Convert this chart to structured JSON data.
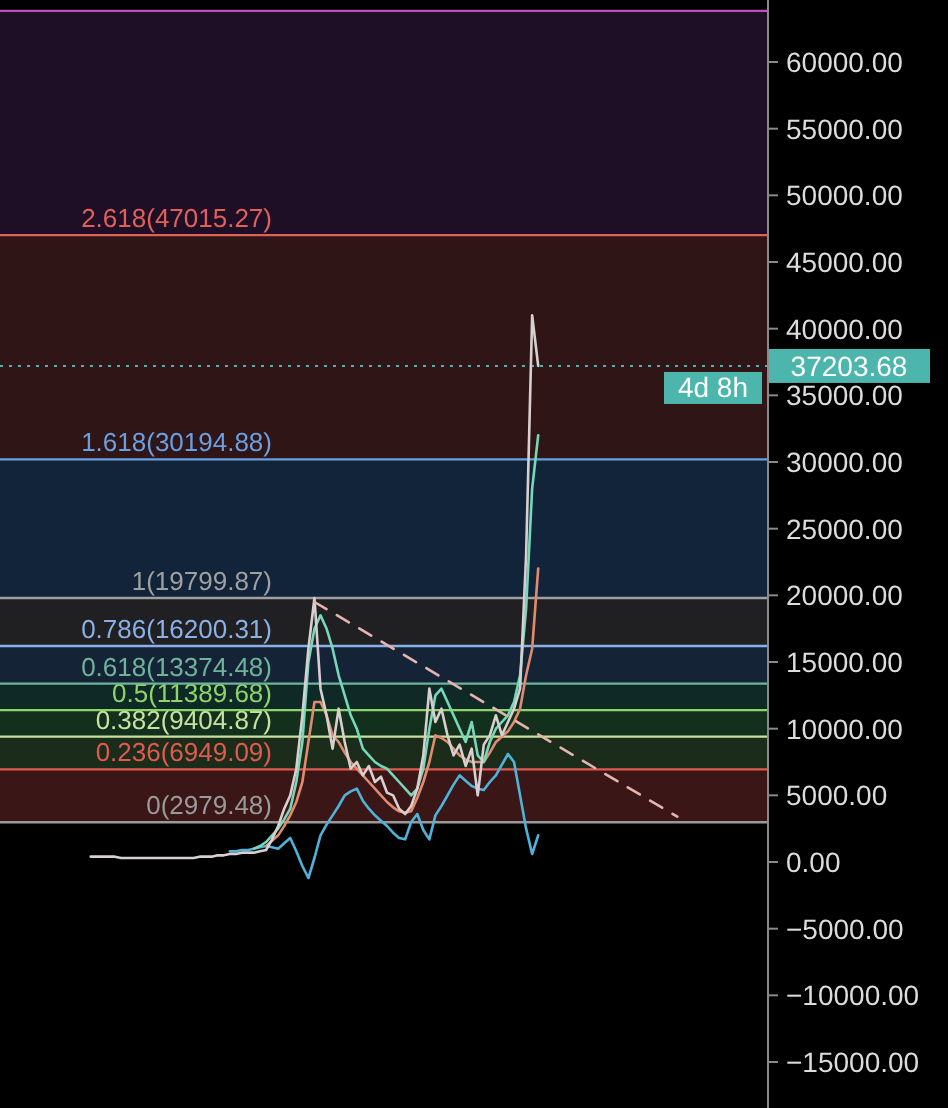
{
  "chart_data": {
    "type": "line",
    "categories": [
      null,
      null,
      null,
      null,
      null,
      null,
      null,
      null,
      null,
      null,
      null,
      null,
      null,
      null,
      null,
      null,
      null,
      null,
      null,
      null,
      null,
      null,
      null,
      null,
      null,
      null,
      null,
      null,
      null,
      null,
      null,
      null,
      null,
      null,
      null,
      null,
      null,
      null,
      null,
      null,
      null,
      null,
      null,
      null,
      null,
      null,
      null,
      null,
      null,
      null,
      null,
      null,
      null,
      null,
      null,
      null,
      null,
      null,
      null,
      null,
      null,
      null,
      null,
      null,
      null,
      null,
      null,
      null,
      null,
      null,
      null,
      null,
      null,
      null,
      null,
      null,
      null,
      null,
      null,
      null,
      null,
      null,
      null,
      null,
      null,
      null,
      null,
      null,
      null,
      null,
      null,
      null,
      null,
      null,
      null,
      null,
      null,
      null,
      null,
      null,
      null,
      null,
      null,
      null,
      null,
      null,
      null,
      null,
      null,
      null,
      null,
      null,
      null,
      null,
      null,
      null,
      null,
      null,
      null,
      null,
      null,
      null,
      null,
      null,
      null,
      null,
      null,
      null
    ],
    "series": [
      {
        "color": "#4fb3d9",
        "values": [
          null,
          null,
          null,
          null,
          null,
          null,
          null,
          null,
          null,
          null,
          null,
          null,
          null,
          null,
          null,
          null,
          null,
          null,
          null,
          null,
          null,
          null,
          null,
          null,
          null,
          null,
          null,
          null,
          null,
          null,
          null,
          null,
          null,
          null,
          null,
          null,
          null,
          null,
          800,
          800,
          900,
          900,
          1000,
          1100,
          1200,
          1100,
          1000,
          1400,
          1800,
          800,
          -300,
          -1200,
          300,
          2000,
          2800,
          3500,
          4200,
          5000,
          5300,
          5500,
          4600,
          4000,
          3500,
          3100,
          2700,
          2200,
          1800,
          1700,
          3000,
          3600,
          2400,
          1700,
          3500,
          4200,
          5000,
          5800,
          6500,
          6100,
          5700,
          5500,
          5400,
          6000,
          6500,
          7300,
          8100,
          7500,
          5000,
          2500,
          600,
          2000,
          null,
          null,
          null,
          null,
          null,
          null,
          null,
          null,
          null,
          null,
          null,
          null,
          null,
          null,
          null,
          null,
          null,
          null,
          null,
          null,
          null,
          null,
          null,
          null,
          null,
          null,
          null,
          null,
          null,
          null,
          null,
          null,
          null,
          null,
          null,
          null,
          null,
          null
        ]
      },
      {
        "color": "#e08b6f",
        "values": [
          null,
          null,
          null,
          null,
          null,
          null,
          null,
          null,
          null,
          null,
          null,
          null,
          null,
          null,
          null,
          null,
          null,
          null,
          null,
          null,
          null,
          null,
          null,
          null,
          null,
          null,
          null,
          null,
          null,
          null,
          null,
          null,
          null,
          null,
          null,
          null,
          null,
          null,
          null,
          null,
          null,
          null,
          null,
          null,
          1200,
          1600,
          2000,
          2700,
          3500,
          4500,
          6000,
          9000,
          12000,
          12000,
          11000,
          9500,
          9000,
          8200,
          7500,
          7000,
          6500,
          6000,
          5500,
          5000,
          4500,
          4100,
          3800,
          3700,
          3800,
          4800,
          6000,
          7500,
          9500,
          9300,
          9000,
          8500,
          8000,
          7700,
          7500,
          7500,
          7500,
          8200,
          9000,
          9400,
          9800,
          10500,
          11500,
          14000,
          16000,
          22000,
          null,
          null,
          null,
          null,
          null,
          null,
          null,
          null,
          null,
          null,
          null,
          null,
          null,
          null,
          null,
          null,
          null,
          null,
          null,
          null,
          null,
          null,
          null,
          null,
          null,
          null,
          null,
          null,
          null,
          null,
          null,
          null,
          null,
          null,
          null,
          null,
          null,
          null
        ]
      },
      {
        "color": "#76d7b9",
        "values": [
          null,
          null,
          null,
          null,
          null,
          null,
          null,
          null,
          null,
          null,
          null,
          null,
          null,
          null,
          null,
          null,
          null,
          null,
          null,
          null,
          null,
          null,
          null,
          null,
          null,
          null,
          null,
          null,
          null,
          null,
          null,
          null,
          null,
          null,
          null,
          null,
          null,
          null,
          null,
          null,
          null,
          null,
          1000,
          1200,
          1500,
          2000,
          2500,
          3200,
          4000,
          6000,
          9000,
          15000,
          17500,
          18500,
          17500,
          16000,
          14000,
          12500,
          11000,
          10000,
          8500,
          8000,
          7500,
          7200,
          7000,
          6500,
          6000,
          5500,
          5000,
          5500,
          7000,
          10000,
          12500,
          13000,
          12000,
          11000,
          10000,
          9000,
          10500,
          8000,
          7500,
          9000,
          10000,
          10500,
          11000,
          12000,
          14000,
          19000,
          28000,
          32000,
          null,
          null,
          null,
          null,
          null,
          null,
          null,
          null,
          null,
          null,
          null,
          null,
          null,
          null,
          null,
          null,
          null,
          null,
          null,
          null,
          null,
          null,
          null,
          null,
          null,
          null,
          null,
          null,
          null,
          null,
          null,
          null,
          null,
          null,
          null,
          null,
          null,
          null
        ]
      },
      {
        "color": "#d8d0d0",
        "values": [
          null,
          null,
          null,
          null,
          null,
          null,
          null,
          null,
          null,
          null,
          null,
          null,
          null,
          null,
          null,
          400,
          400,
          400,
          400,
          400,
          300,
          300,
          300,
          300,
          300,
          300,
          300,
          300,
          300,
          300,
          300,
          300,
          300,
          400,
          400,
          400,
          500,
          500,
          600,
          600,
          700,
          700,
          700,
          800,
          900,
          1700,
          2700,
          4000,
          5000,
          7000,
          11000,
          16000,
          19800,
          13000,
          11000,
          8500,
          11500,
          9000,
          7000,
          7500,
          6500,
          7200,
          6000,
          6400,
          5200,
          5000,
          4000,
          3600,
          4200,
          5500,
          8000,
          13000,
          10500,
          11500,
          9500,
          8000,
          8800,
          7200,
          8500,
          5000,
          8800,
          9500,
          11000,
          9500,
          10500,
          11500,
          13000,
          23000,
          41000,
          37203.68,
          null,
          null,
          null,
          null,
          null,
          null,
          null,
          null,
          null,
          null,
          null,
          null,
          null,
          null,
          null,
          null,
          null,
          null,
          null,
          null,
          null,
          null,
          null,
          null,
          null,
          null,
          null,
          null,
          null,
          null,
          null,
          null,
          null,
          null,
          null,
          null,
          null,
          null
        ]
      },
      {
        "type": "line",
        "line_style": "dashed",
        "color": "#e6b3b0",
        "values": [
          null,
          null,
          null,
          null,
          null,
          null,
          null,
          null,
          null,
          null,
          null,
          null,
          null,
          null,
          null,
          null,
          null,
          null,
          null,
          null,
          null,
          null,
          null,
          null,
          null,
          null,
          null,
          null,
          null,
          null,
          null,
          null,
          null,
          null,
          null,
          null,
          null,
          null,
          null,
          null,
          null,
          null,
          null,
          null,
          null,
          null,
          null,
          null,
          null,
          null,
          null,
          null,
          19500,
          null,
          null,
          null,
          null,
          null,
          null,
          null,
          null,
          null,
          null,
          null,
          null,
          null,
          null,
          null,
          null,
          null,
          null,
          null,
          null,
          null,
          null,
          null,
          null,
          null,
          null,
          null,
          null,
          null,
          null,
          null,
          null,
          null,
          null,
          null,
          null,
          null,
          null,
          null,
          null,
          null,
          null,
          null,
          null,
          null,
          null,
          null,
          null,
          null,
          null,
          null,
          null,
          null,
          null,
          null,
          null,
          null,
          null,
          null,
          3400,
          null,
          null,
          null,
          null,
          null,
          null,
          null,
          null,
          null,
          null,
          null,
          null,
          null,
          null,
          null
        ]
      }
    ],
    "ylim": [
      -18450,
      64650
    ],
    "yticks": [
      {
        "value": -15000,
        "label": "−15000.00"
      },
      {
        "value": -10000,
        "label": "−10000.00"
      },
      {
        "value": -5000,
        "label": "−5000.00"
      },
      {
        "value": 0,
        "label": "0.00"
      },
      {
        "value": 5000,
        "label": "5000.00"
      },
      {
        "value": 10000,
        "label": "10000.00"
      },
      {
        "value": 15000,
        "label": "15000.00"
      },
      {
        "value": 20000,
        "label": "20000.00"
      },
      {
        "value": 25000,
        "label": "25000.00"
      },
      {
        "value": 30000,
        "label": "30000.00"
      },
      {
        "value": 35000,
        "label": "35000.00"
      },
      {
        "value": 40000,
        "label": "40000.00"
      },
      {
        "value": 45000,
        "label": "45000.00"
      },
      {
        "value": 50000,
        "label": "50000.00"
      },
      {
        "value": 55000,
        "label": "55000.00"
      },
      {
        "value": 60000,
        "label": "60000.00"
      }
    ],
    "tick_labels": "y",
    "bands": [
      {
        "axis": "y",
        "from": 2979.48,
        "to": 6949.09,
        "color": "#3a1616"
      },
      {
        "axis": "y",
        "from": 6949.09,
        "to": 9404.87,
        "color": "#1b2d1a"
      },
      {
        "axis": "y",
        "from": 9404.87,
        "to": 11389.68,
        "color": "#13301c"
      },
      {
        "axis": "y",
        "from": 11389.68,
        "to": 13374.48,
        "color": "#0f2a26"
      },
      {
        "axis": "y",
        "from": 13374.48,
        "to": 16200.31,
        "color": "#142436"
      },
      {
        "axis": "y",
        "from": 16200.31,
        "to": 19799.87,
        "color": "#202022"
      },
      {
        "axis": "y",
        "from": 19799.87,
        "to": 30194.88,
        "color": "#11243a"
      },
      {
        "axis": "y",
        "from": 30194.88,
        "to": 47015.27,
        "color": "#2f1515"
      },
      {
        "axis": "y",
        "from": 47015.27,
        "to": 63835.66,
        "color": "#1e0f26"
      }
    ],
    "ref_lines": [
      {
        "axis": "y",
        "value": 2979.48,
        "label": "0(2979.48)",
        "color": "#9a9a9a"
      },
      {
        "axis": "y",
        "value": 6949.09,
        "label": "0.236(6949.09)",
        "color": "#e05a50"
      },
      {
        "axis": "y",
        "value": 9404.87,
        "label": "0.382(9404.87)",
        "color": "#c8e0a0"
      },
      {
        "axis": "y",
        "value": 11389.68,
        "label": "0.5(11389.68)",
        "color": "#8fd46a"
      },
      {
        "axis": "y",
        "value": 13374.48,
        "label": "0.618(13374.48)",
        "color": "#6fb39a"
      },
      {
        "axis": "y",
        "value": 16200.31,
        "label": "0.786(16200.31)",
        "color": "#8ab0e8"
      },
      {
        "axis": "y",
        "value": 19799.87,
        "label": "1(19799.87)",
        "color": "#a0a0a0"
      },
      {
        "axis": "y",
        "value": 30194.88,
        "label": "1.618(30194.88)",
        "color": "#6a9fe0"
      },
      {
        "axis": "y",
        "value": 47015.27,
        "label": "2.618(47015.27)",
        "color": "#e0605a"
      },
      {
        "axis": "y",
        "value": 63835.66,
        "color": "#c050c0"
      },
      {
        "axis": "y",
        "value": 37203.68,
        "label": "37203.68",
        "color": "#4db6ac",
        "line_style": "dotted"
      }
    ],
    "annotations": [
      "4d 8h"
    ]
  }
}
